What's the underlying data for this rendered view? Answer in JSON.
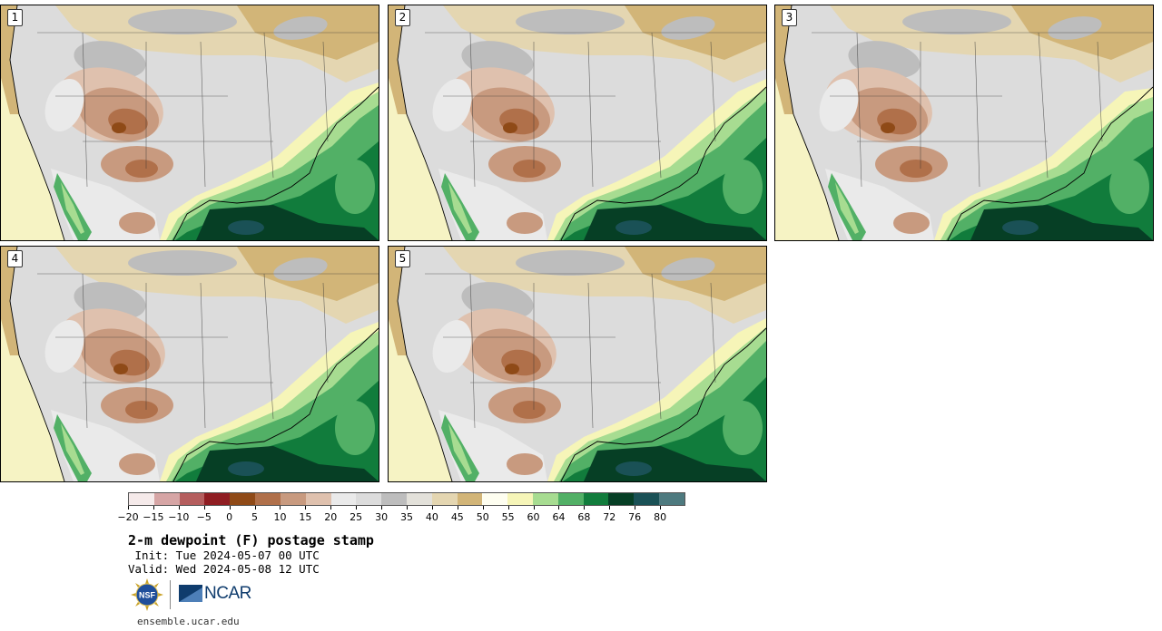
{
  "panels": [
    {
      "label": "1"
    },
    {
      "label": "2"
    },
    {
      "label": "3"
    },
    {
      "label": "4"
    },
    {
      "label": "5"
    }
  ],
  "colorbar": {
    "colors": [
      "#f5eaea",
      "#d6a5a5",
      "#b55e5e",
      "#8f1d22",
      "#8f4a17",
      "#b0704a",
      "#c89a7f",
      "#dfc1ae",
      "#eaeaea",
      "#dcdcdc",
      "#bdbdbd",
      "#e3e1da",
      "#e4d6b1",
      "#d2b578",
      "#fefef0",
      "#f6f5b8",
      "#a7dc91",
      "#52b066",
      "#117c3c",
      "#063f25",
      "#1a5156",
      "#4e7a7f"
    ],
    "tick_labels": [
      "−20",
      "−15",
      "−10",
      "−5",
      "0",
      "5",
      "10",
      "15",
      "20",
      "25",
      "30",
      "35",
      "40",
      "45",
      "50",
      "55",
      "60",
      "64",
      "68",
      "72",
      "76",
      "80"
    ]
  },
  "title": "2-m dewpoint (F) postage stamp",
  "init": " Init: Tue 2024-05-07 00 UTC",
  "valid": "Valid: Wed 2024-05-08 12 UTC",
  "logos": {
    "nsf": "NSF",
    "ncar": "NCAR"
  },
  "site": "ensemble.ucar.edu"
}
